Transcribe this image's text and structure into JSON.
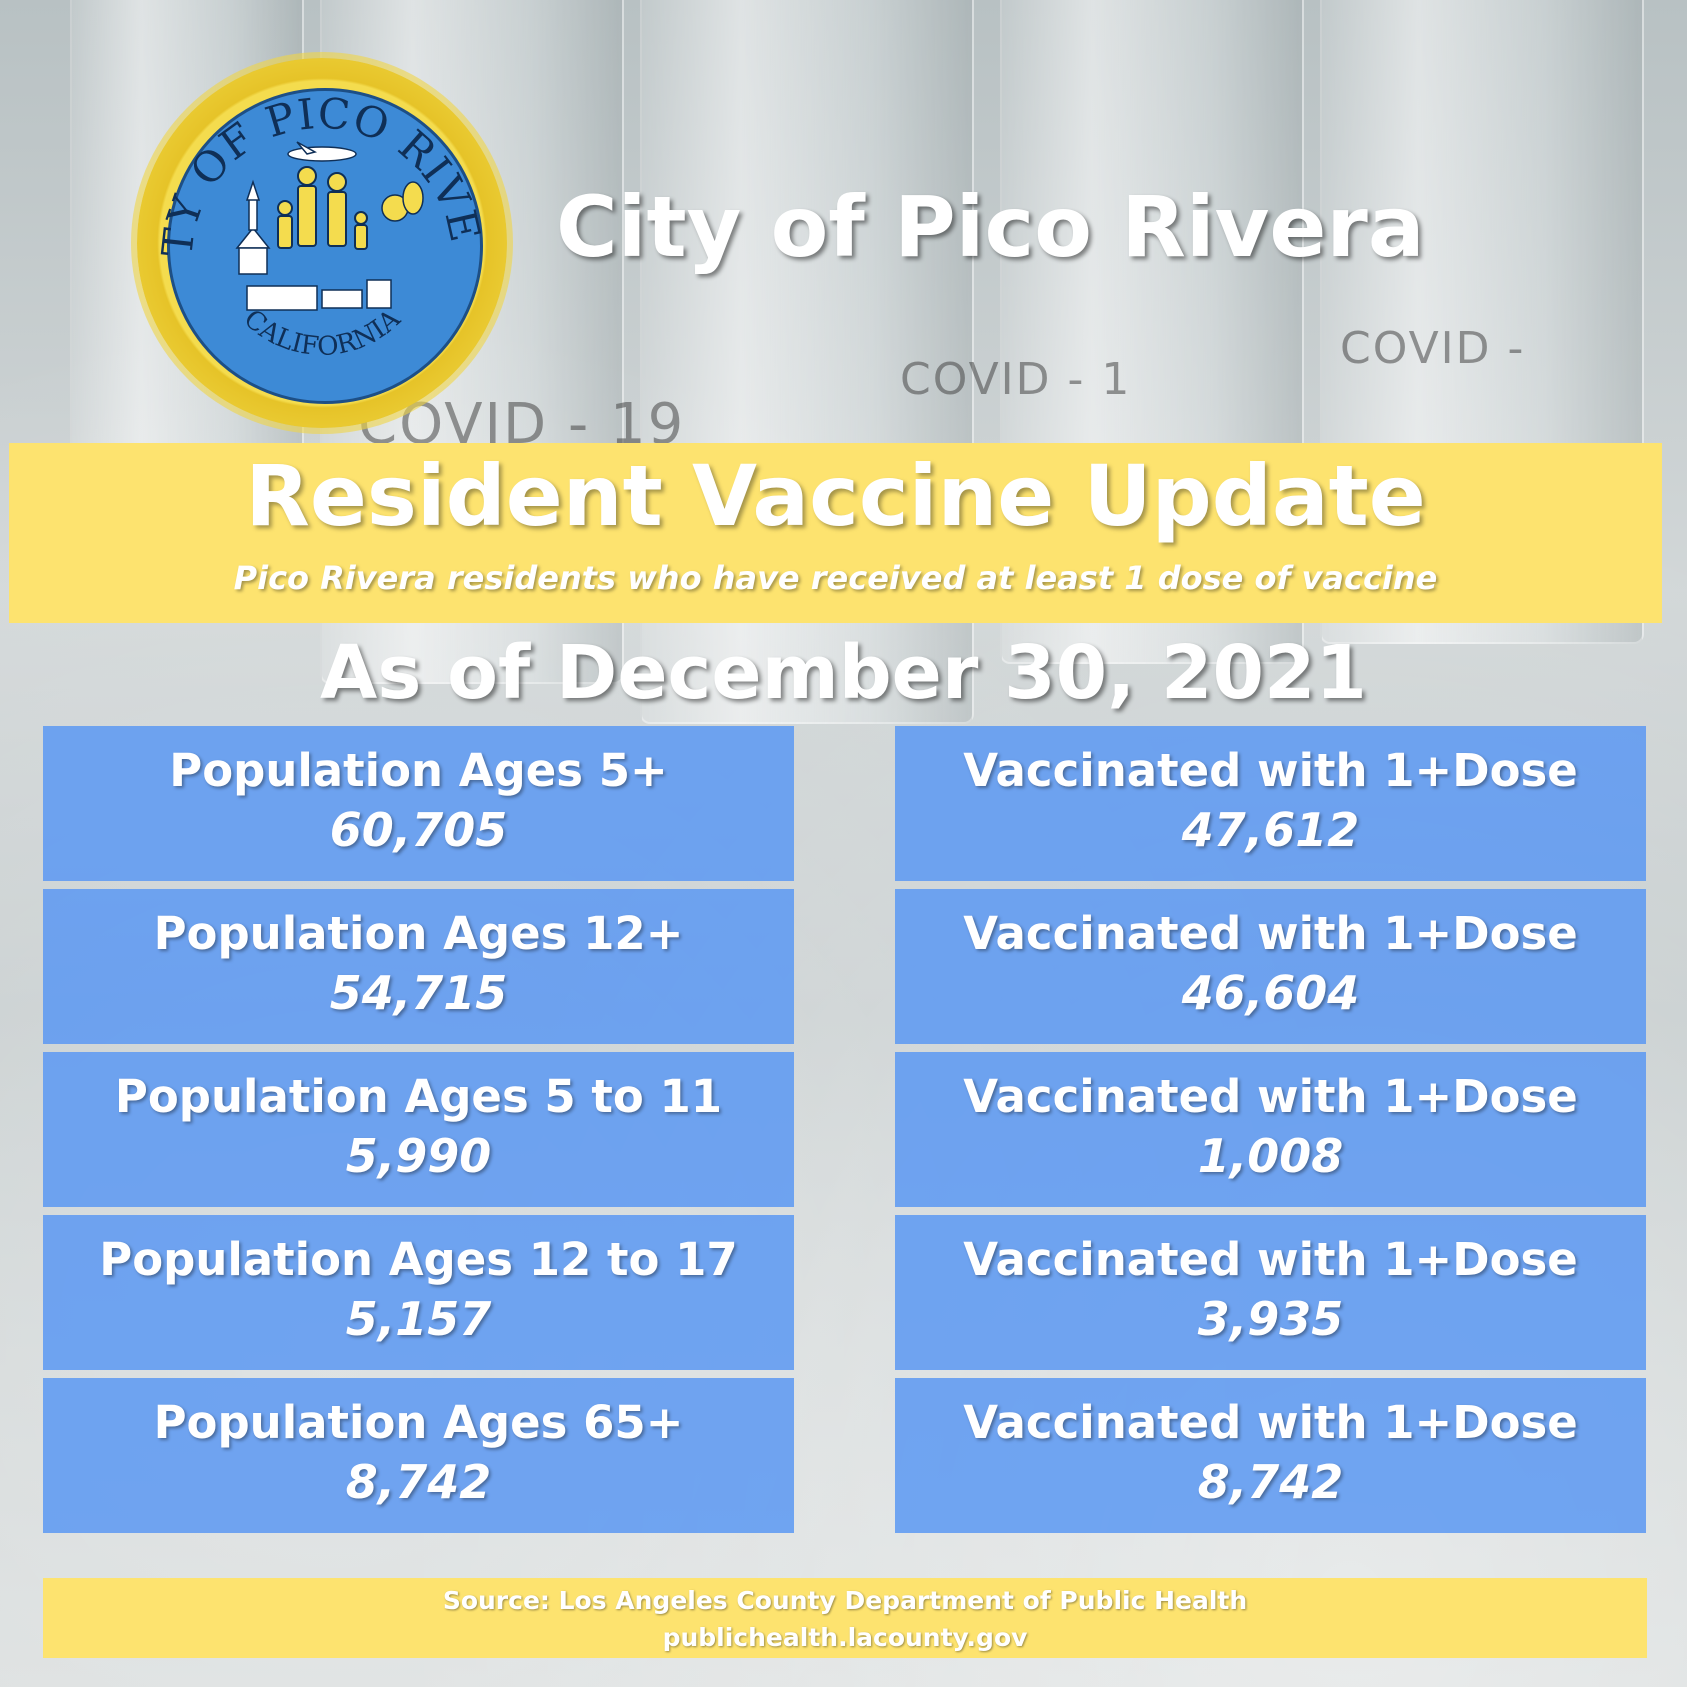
{
  "seal": {
    "top_text": "CITY OF PICO RIVERA",
    "bottom_text": "CALIFORNIA"
  },
  "background": {
    "vial_labels": [
      "COVID - 19",
      "COVID - 1",
      "COVID -"
    ]
  },
  "header": {
    "title": "City of Pico Rivera"
  },
  "banner": {
    "title": "Resident Vaccine Update",
    "subtitle": "Pico Rivera residents who have received at least 1 dose of vaccine"
  },
  "as_of": "As of December 30, 2021",
  "rows": [
    {
      "population_label": "Population Ages 5+",
      "population_value": "60,705",
      "vaccinated_label": "Vaccinated with 1+Dose",
      "vaccinated_value": "47,612"
    },
    {
      "population_label": "Population Ages 12+",
      "population_value": "54,715",
      "vaccinated_label": "Vaccinated with 1+Dose",
      "vaccinated_value": "46,604"
    },
    {
      "population_label": "Population Ages 5 to 11",
      "population_value": "5,990",
      "vaccinated_label": "Vaccinated with 1+Dose",
      "vaccinated_value": "1,008"
    },
    {
      "population_label": "Population Ages 12 to 17",
      "population_value": "5,157",
      "vaccinated_label": "Vaccinated with 1+Dose",
      "vaccinated_value": "3,935"
    },
    {
      "population_label": "Population Ages 65+",
      "population_value": "8,742",
      "vaccinated_label": "Vaccinated with 1+Dose",
      "vaccinated_value": "8,742"
    }
  ],
  "footer": {
    "source": "Source:  Los Angeles County Department of Public Health",
    "url": "publichealth.lacounty.gov"
  },
  "colors": {
    "banner_yellow": "#fde36f",
    "cell_blue": "#5c98f2",
    "seal_blue": "#3d8ad6",
    "seal_gold": "#f4dc4e"
  }
}
